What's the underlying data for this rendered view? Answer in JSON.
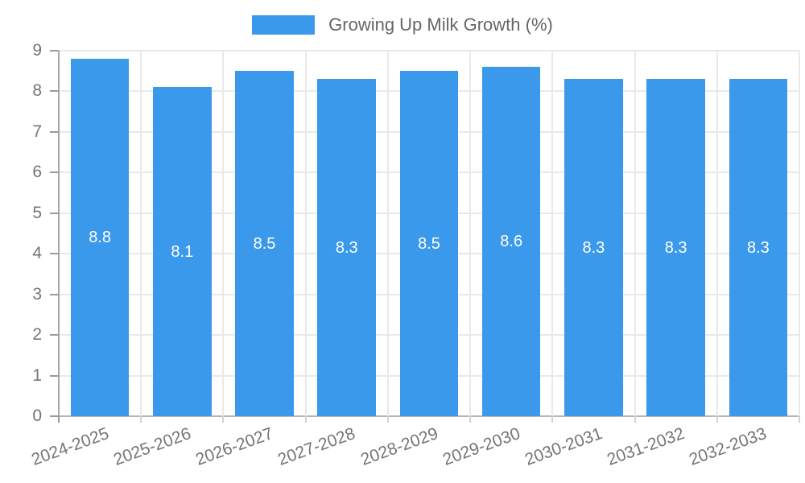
{
  "chart_data": {
    "type": "bar",
    "title": "",
    "legend": "Growing Up Milk Growth (%)",
    "legend_position": "top",
    "categories": [
      "2024-2025",
      "2025-2026",
      "2026-2027",
      "2027-2028",
      "2028-2029",
      "2029-2030",
      "2030-2031",
      "2031-2032",
      "2032-2033"
    ],
    "values": [
      8.8,
      8.1,
      8.5,
      8.3,
      8.5,
      8.6,
      8.3,
      8.3,
      8.3
    ],
    "value_labels": [
      "8.8",
      "8.1",
      "8.5",
      "8.3",
      "8.5",
      "8.6",
      "8.3",
      "8.3",
      "8.3"
    ],
    "xlabel": "",
    "ylabel": "",
    "ylim": [
      0,
      9
    ],
    "yticks": [
      0,
      1,
      2,
      3,
      4,
      5,
      6,
      7,
      8,
      9
    ],
    "grid": true,
    "x_label_rotation_deg": -20,
    "colors": {
      "bar": "#3b99ec",
      "legend_text": "#666666",
      "tick_text": "#757575",
      "grid": "#e9e9e9",
      "axis_line": "#a6a6a6",
      "baseline": "#b6b6b6",
      "y_tick_mark": "#9a9a9a",
      "x_tick_mark": "#d2d2d2",
      "value_text": "#ffffff"
    }
  }
}
